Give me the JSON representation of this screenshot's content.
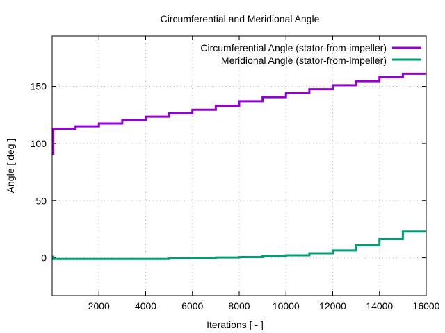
{
  "chart_data": {
    "type": "line",
    "title": "Circumferential and Meridional Angle",
    "xlabel": "Iterations [ - ]",
    "ylabel": "Angle [ deg ]",
    "xlim": [
      0,
      16000
    ],
    "ylim": [
      -33,
      194
    ],
    "xticks": [
      2000,
      4000,
      6000,
      8000,
      10000,
      12000,
      14000,
      16000
    ],
    "yticks": [
      0,
      50,
      100,
      150
    ],
    "grid": true,
    "legend_position": "top-right",
    "series": [
      {
        "name": "Circumferential Angle (stator-from-impeller)",
        "color": "#9400d3",
        "x": [
          0,
          50,
          1000,
          2000,
          3000,
          4000,
          5000,
          6000,
          7000,
          8000,
          9000,
          10000,
          11000,
          12000,
          13000,
          14000,
          15000,
          16000
        ],
        "y": [
          91,
          113,
          115,
          117.5,
          120.5,
          123.5,
          126.5,
          129.5,
          133,
          137,
          140.5,
          144,
          147.5,
          151,
          154.5,
          158,
          161,
          161
        ]
      },
      {
        "name": "Meridional Angle (stator-from-impeller)",
        "color": "#009e73",
        "x": [
          0,
          50,
          1000,
          2000,
          3000,
          4000,
          5000,
          6000,
          7000,
          8000,
          9000,
          10000,
          11000,
          12000,
          13000,
          14000,
          15000,
          16000
        ],
        "y": [
          1,
          -1,
          -1,
          -1,
          -1,
          -1,
          -0.5,
          -0.3,
          0.3,
          0.7,
          1.5,
          2.2,
          4,
          6.5,
          11,
          16.5,
          23,
          23
        ]
      }
    ]
  }
}
